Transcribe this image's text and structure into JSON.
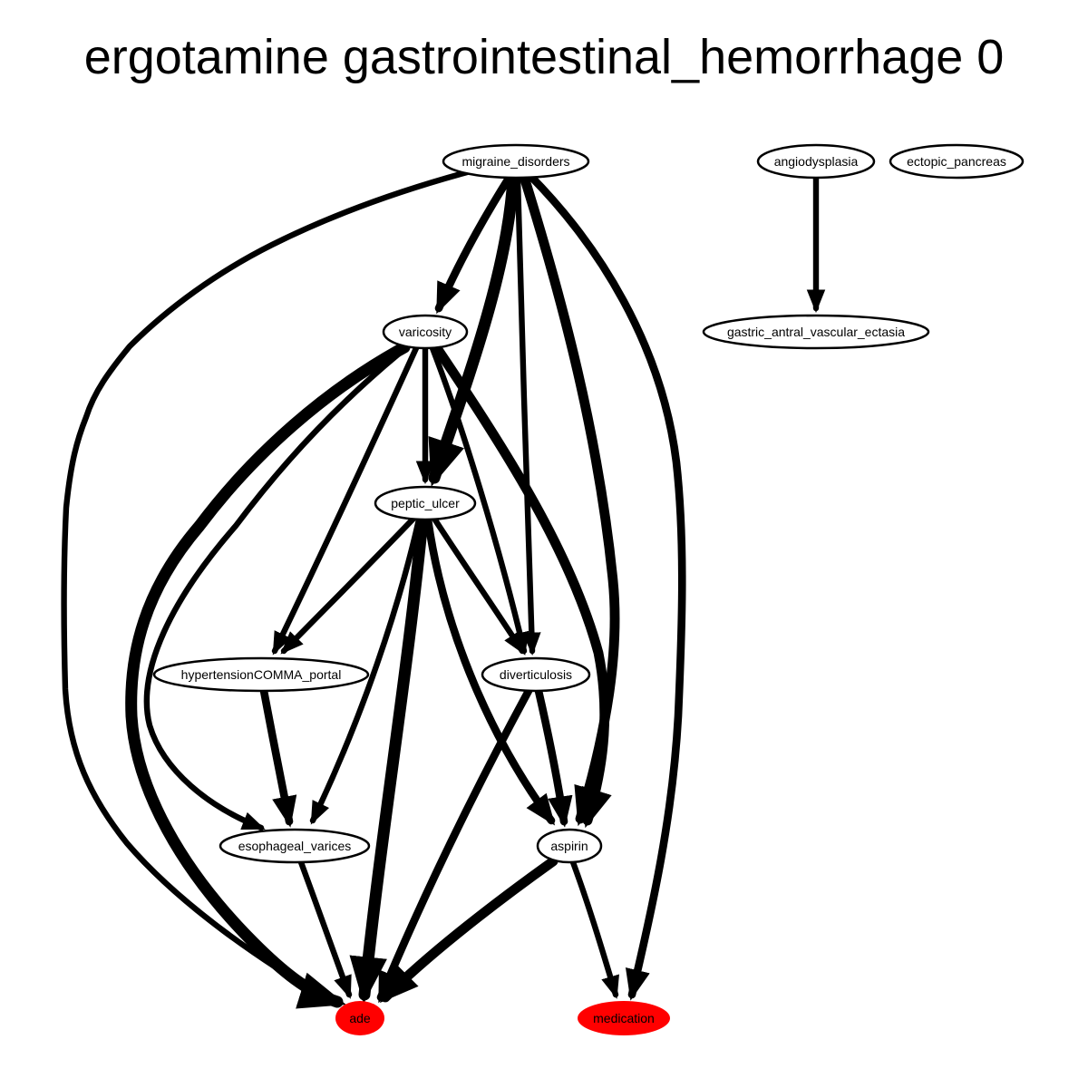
{
  "title": "ergotamine gastrointestinal_hemorrhage 0",
  "colors": {
    "edge": "#000000",
    "node_fill": "#ffffff",
    "node_stroke": "#000000",
    "outcome_fill": "#ff0000"
  },
  "nodes": [
    {
      "id": "migraine_disorders",
      "label": "migraine_disorders",
      "highlight": false
    },
    {
      "id": "angiodysplasia",
      "label": "angiodysplasia",
      "highlight": false
    },
    {
      "id": "ectopic_pancreas",
      "label": "ectopic_pancreas",
      "highlight": false
    },
    {
      "id": "varicosity",
      "label": "varicosity",
      "highlight": false
    },
    {
      "id": "gastric_antral_vascular_ectasia",
      "label": "gastric_antral_vascular_ectasia",
      "highlight": false
    },
    {
      "id": "peptic_ulcer",
      "label": "peptic_ulcer",
      "highlight": false
    },
    {
      "id": "hypertensionCOMMA_portal",
      "label": "hypertensionCOMMA_portal",
      "highlight": false
    },
    {
      "id": "diverticulosis",
      "label": "diverticulosis",
      "highlight": false
    },
    {
      "id": "esophageal_varices",
      "label": "esophageal_varices",
      "highlight": false
    },
    {
      "id": "aspirin",
      "label": "aspirin",
      "highlight": false
    },
    {
      "id": "ade",
      "label": "ade",
      "highlight": true
    },
    {
      "id": "medication",
      "label": "medication",
      "highlight": true
    }
  ],
  "edges": [
    {
      "from": "migraine_disorders",
      "to": "ade",
      "weight": 2
    },
    {
      "from": "migraine_disorders",
      "to": "varicosity",
      "weight": 3
    },
    {
      "from": "migraine_disorders",
      "to": "peptic_ulcer",
      "weight": 5
    },
    {
      "from": "migraine_disorders",
      "to": "diverticulosis",
      "weight": 2
    },
    {
      "from": "migraine_disorders",
      "to": "aspirin",
      "weight": 4
    },
    {
      "from": "migraine_disorders",
      "to": "medication",
      "weight": 3
    },
    {
      "from": "angiodysplasia",
      "to": "gastric_antral_vascular_ectasia",
      "weight": 2
    },
    {
      "from": "varicosity",
      "to": "ade",
      "weight": 5
    },
    {
      "from": "varicosity",
      "to": "esophageal_varices",
      "weight": 2
    },
    {
      "from": "varicosity",
      "to": "hypertensionCOMMA_portal",
      "weight": 2
    },
    {
      "from": "varicosity",
      "to": "peptic_ulcer",
      "weight": 2
    },
    {
      "from": "varicosity",
      "to": "diverticulosis",
      "weight": 2
    },
    {
      "from": "varicosity",
      "to": "aspirin",
      "weight": 4
    },
    {
      "from": "peptic_ulcer",
      "to": "hypertensionCOMMA_portal",
      "weight": 2
    },
    {
      "from": "peptic_ulcer",
      "to": "esophageal_varices",
      "weight": 2
    },
    {
      "from": "peptic_ulcer",
      "to": "ade",
      "weight": 5
    },
    {
      "from": "peptic_ulcer",
      "to": "diverticulosis",
      "weight": 2
    },
    {
      "from": "peptic_ulcer",
      "to": "aspirin",
      "weight": 3
    },
    {
      "from": "hypertensionCOMMA_portal",
      "to": "esophageal_varices",
      "weight": 3
    },
    {
      "from": "diverticulosis",
      "to": "ade",
      "weight": 3
    },
    {
      "from": "diverticulosis",
      "to": "aspirin",
      "weight": 3
    },
    {
      "from": "esophageal_varices",
      "to": "ade",
      "weight": 2
    },
    {
      "from": "aspirin",
      "to": "ade",
      "weight": 4
    },
    {
      "from": "aspirin",
      "to": "medication",
      "weight": 2
    }
  ]
}
